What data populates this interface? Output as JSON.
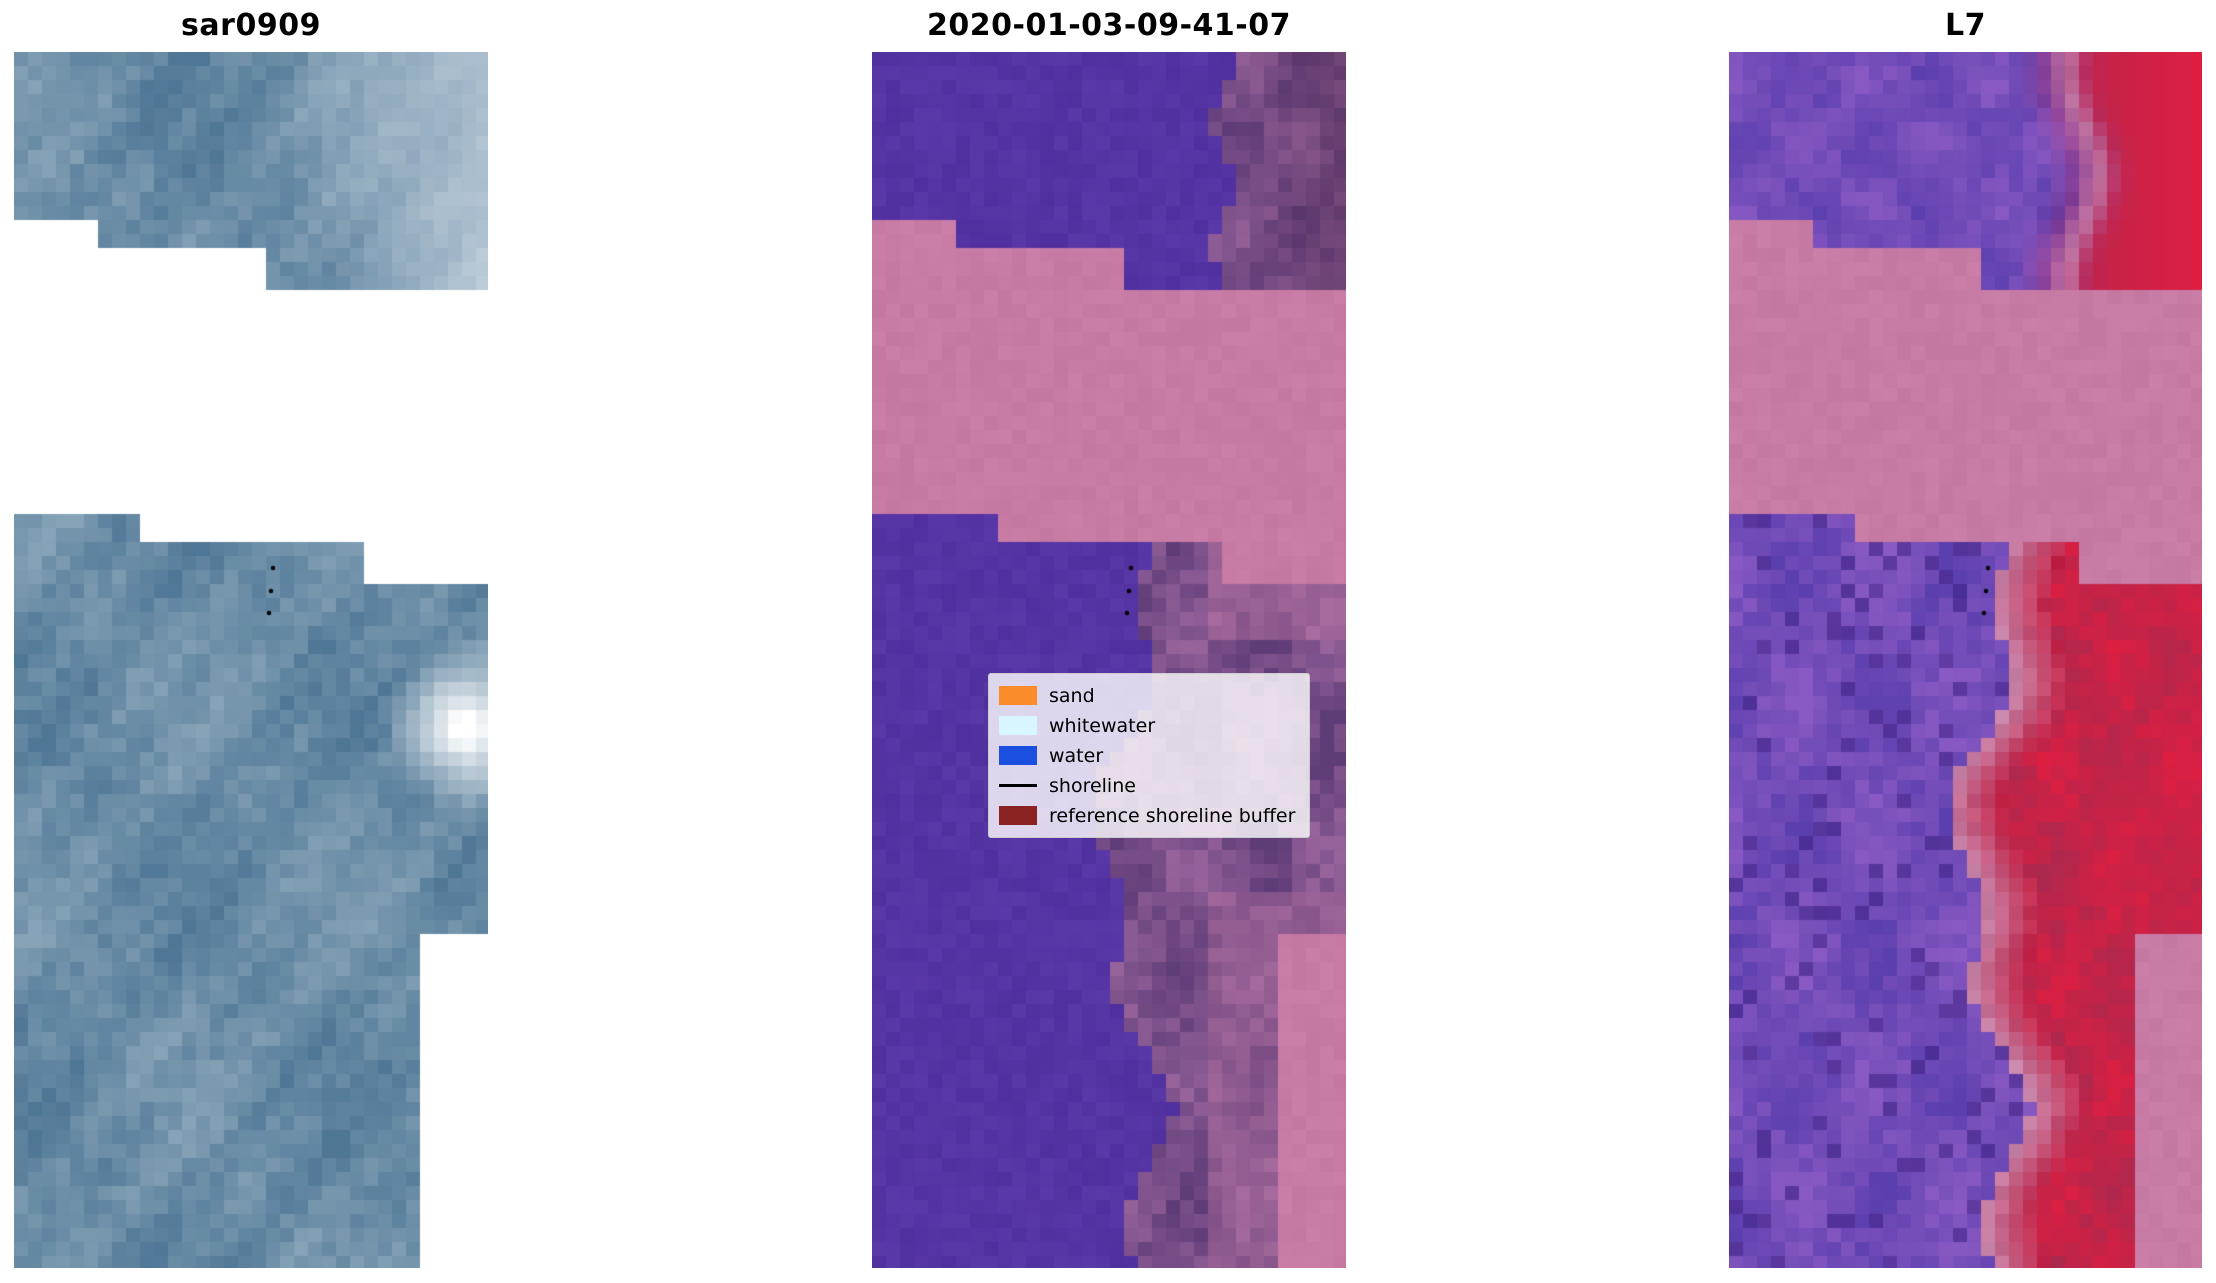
{
  "figure": {
    "background": "#ffffff",
    "panels": [
      {
        "title": "sar0909",
        "kind": "sar",
        "palette": {
          "base_dark": "#4e7695",
          "base_light": "#86a3b7",
          "highlight": "#ffffff"
        }
      },
      {
        "title": "2020-01-03-09-41-07",
        "kind": "classified",
        "palette": {
          "class_purple": "#5534a4",
          "nodata_pink": "#c87ba5",
          "land_dark": "#5e3c78",
          "land_light": "#97639b"
        }
      },
      {
        "title": "L7",
        "kind": "false_color",
        "palette": {
          "violet_dark": "#5b3fae",
          "violet_light": "#8a5ac4",
          "red_dark": "#a62a50",
          "red_bright": "#df1e41",
          "transition_pink": "#c785aa",
          "nodata_pink": "#c87ba5"
        }
      }
    ]
  },
  "legend": {
    "items": [
      {
        "label": "sand",
        "color": "#fb8c2c",
        "type": "patch"
      },
      {
        "label": "whitewater",
        "color": "#d8f6ff",
        "type": "patch"
      },
      {
        "label": "water",
        "color": "#1b4fe0",
        "type": "patch"
      },
      {
        "label": "shoreline",
        "color": "#000000",
        "type": "line"
      },
      {
        "label": "reference shoreline buffer",
        "color": "#8b2222",
        "type": "patch"
      }
    ]
  },
  "chart_data": {
    "type": "heatmap",
    "title": "",
    "panels": [
      {
        "title": "sar0909",
        "content": "SAR backscatter image: blue-grey speckle texture; white no-data stepped band across the upper third and a white lower-right corner; bright white backscatter return on the right edge near mid-panel; three small black reference dots near the upper step edge"
      },
      {
        "title": "2020-01-03-09-41-07",
        "content": "Image classification result: indigo-purple water class on the left, mottled purple-mauve land class on the right, rose-pink no-data band across the upper third and in the lower-right corner; three small black reference dots near the upper step edge"
      },
      {
        "title": "L7",
        "content": "Landsat 7 false-colour composite: violet water region on the left, crimson-red land region on the right with a light transition curve, rose-pink no-data band matching the classified panel; three small black reference dots near the upper step edge"
      }
    ],
    "legend_entries": [
      "sand",
      "whitewater",
      "water",
      "shoreline",
      "reference shoreline buffer"
    ],
    "axes": "off"
  }
}
